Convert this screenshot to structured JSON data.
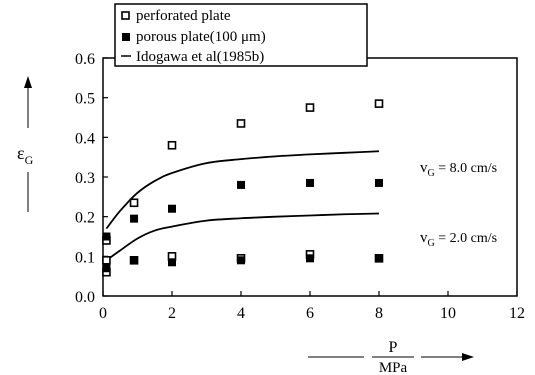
{
  "chart_data": {
    "type": "scatter",
    "xlabel": "P",
    "xlabel_unit": "MPa",
    "ylabel": "ε",
    "ylabel_sub": "G",
    "xlim": [
      0,
      12
    ],
    "ylim": [
      0.0,
      0.6
    ],
    "xticks": [
      "0",
      "2",
      "4",
      "6",
      "8",
      "10",
      "12"
    ],
    "yticks": [
      "0.0",
      "0.1",
      "0.2",
      "0.3",
      "0.4",
      "0.5",
      "0.6"
    ],
    "grid": false,
    "legend_position": "top-left",
    "legend": [
      {
        "label": "perforated plate",
        "marker": "open-square"
      },
      {
        "label": "porous plate(100 μm)",
        "marker": "filled-square"
      },
      {
        "label": "Idogawa et al(1985b)",
        "marker": "line"
      }
    ],
    "series": [
      {
        "name": "perforated plate",
        "marker": "open-square",
        "points": [
          [
            0.1,
            0.14
          ],
          [
            0.1,
            0.09
          ],
          [
            0.1,
            0.06
          ],
          [
            0.9,
            0.235
          ],
          [
            0.9,
            0.09
          ],
          [
            2,
            0.38
          ],
          [
            2,
            0.1
          ],
          [
            4,
            0.435
          ],
          [
            4,
            0.095
          ],
          [
            6,
            0.475
          ],
          [
            6,
            0.105
          ],
          [
            8,
            0.485
          ],
          [
            8,
            0.095
          ]
        ]
      },
      {
        "name": "porous plate(100 μm)",
        "marker": "filled-square",
        "points": [
          [
            0.1,
            0.15
          ],
          [
            0.1,
            0.07
          ],
          [
            0.9,
            0.195
          ],
          [
            0.9,
            0.09
          ],
          [
            2,
            0.22
          ],
          [
            2,
            0.085
          ],
          [
            4,
            0.28
          ],
          [
            4,
            0.09
          ],
          [
            6,
            0.285
          ],
          [
            6,
            0.095
          ],
          [
            8,
            0.285
          ],
          [
            8,
            0.095
          ]
        ]
      },
      {
        "name": "Idogawa et al(1985b)",
        "style": "line",
        "curves": [
          [
            [
              0.1,
              0.17
            ],
            [
              0.5,
              0.215
            ],
            [
              1,
              0.26
            ],
            [
              1.5,
              0.29
            ],
            [
              2,
              0.31
            ],
            [
              3,
              0.335
            ],
            [
              4,
              0.345
            ],
            [
              5,
              0.352
            ],
            [
              6,
              0.357
            ],
            [
              7,
              0.361
            ],
            [
              8,
              0.365
            ]
          ],
          [
            [
              0.1,
              0.09
            ],
            [
              0.5,
              0.115
            ],
            [
              1,
              0.145
            ],
            [
              1.5,
              0.165
            ],
            [
              2,
              0.175
            ],
            [
              3,
              0.19
            ],
            [
              4,
              0.196
            ],
            [
              5,
              0.2
            ],
            [
              6,
              0.203
            ],
            [
              7,
              0.206
            ],
            [
              8,
              0.208
            ]
          ]
        ]
      }
    ],
    "annotations": [
      {
        "v": "v",
        "sub": "G",
        "text": " = 8.0 cm/s"
      },
      {
        "v": "v",
        "sub": "G",
        "text": " = 2.0 cm/s"
      }
    ]
  }
}
